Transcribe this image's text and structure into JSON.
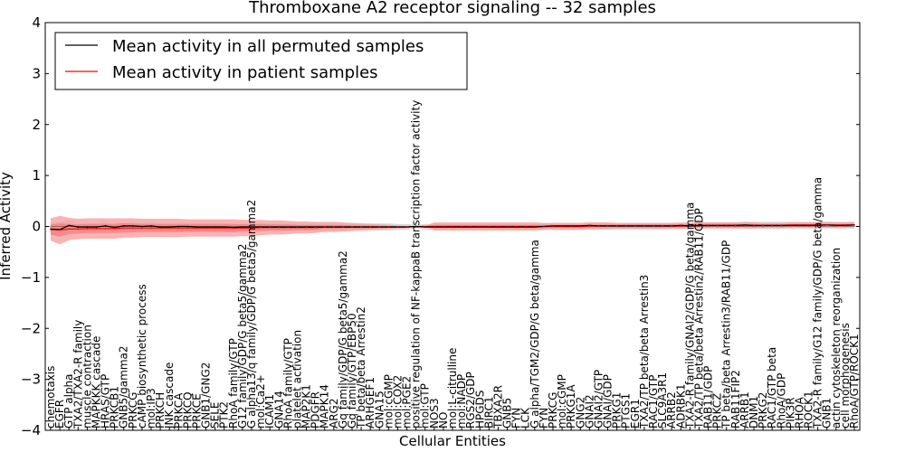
{
  "chart_data": {
    "type": "line",
    "title": "Thromboxane A2 receptor signaling -- 32 samples",
    "xlabel": "Cellular Entities",
    "ylabel": "Inferred Activity",
    "ylim": [
      -4,
      4
    ],
    "yticks": [
      "−4",
      "−3",
      "−2",
      "−1",
      "0",
      "1",
      "2",
      "3",
      "4"
    ],
    "legend": {
      "position": "top-left",
      "entries": [
        {
          "label": "Mean activity in all permuted samples",
          "color": "#000000"
        },
        {
          "label": "Mean activity in patient samples",
          "color": "#ff0000"
        }
      ]
    },
    "band_colors": {
      "permuted": "#cccccc",
      "patient_outer": "#f8a0a0",
      "patient_inner": "#f07070"
    },
    "categories": [
      "chemotaxis",
      "EGFR",
      "GTP alpha",
      "TXA2/TXA2-R family",
      "muscle contraction",
      "MAPKKK cascade",
      "HRAS/GTP",
      "PRKCB1",
      "GNB5/gamma2",
      "PRKCG",
      "cAMP biosynthetic process",
      "mol:IP3",
      "PRKCH",
      "JNK cascade",
      "PRKCA",
      "PRKCQ",
      "PRKCE",
      "GNB1/GNG2",
      "SELE",
      "PTK2",
      "RhoA family/GTP",
      "G12 family/GDP/G beta5/gamma2",
      "G alpha13/q family/GDP/G beta5/gamma2",
      "mol:Ca2+",
      "ICAM1",
      "GNA14",
      "RhoA family/GTP",
      "platelet activation",
      "MAP2K1",
      "PDGFR",
      "MAPK14",
      "ARG2",
      "Gq family/GDP/G beta5/gamma2",
      "Gq family/GTP/EBP50",
      "TP beta/beta Arrestin2",
      "ARHGEF1",
      "GNA15",
      "mol:cGMP",
      "mol:COX2",
      "mol:PGE2",
      "positive regulation of NF-kappaB transcription factor activity",
      "mol:GTP",
      "NOS3",
      "NO",
      "mol:L-citrulline",
      "mol:NADP",
      "RGS2/GDP",
      "HPGDS",
      "BIRC1",
      "TBXA2R",
      "GNB5",
      "FYN",
      "LCK",
      "G alpha/TGM2/GDP/G beta/gamma",
      "FYN",
      "PRKCG",
      "mol:cGMP",
      "PRKG1A",
      "GNG2",
      "GNAI2",
      "GNAI2/GTP",
      "GNAI/GDP",
      "PRKG1",
      "PTGS1",
      "EGR1",
      "TXA2/TP beta/beta Arrestin3",
      "RAC1/GTP",
      "SLC9A3R1",
      "ARRB2",
      "ADRBK1",
      "TXA2-R family/GNAI2/GDP/G beta/gamma",
      "TXA2/TP beta/beta Arrestin2/RAB11/GDP",
      "RAB11/GDP",
      "PRKCZ",
      "TP beta/beta Arrestin3/RAB11/GDP",
      "RAB11FIP2",
      "ARRB1",
      "DNM1",
      "PRKG2",
      "RAC1/GTP beta",
      "RhoA/GDP",
      "PIK3R",
      "RHOA",
      "ROCK1",
      "TXA2-R family/G12 family/GDP/G beta/gamma",
      "GNB1",
      "actin cytoskeleton reorganization",
      "cell morphogenesis",
      "RhoA/GTP/ROCK1"
    ],
    "series": [
      {
        "name": "Mean activity in all permuted samples",
        "values": [
          -0.05,
          -0.06,
          0.02,
          -0.01,
          -0.01,
          -0.01,
          0.01,
          -0.02,
          0.01,
          0.01,
          0.0,
          0.01,
          -0.01,
          -0.01,
          0.0,
          0.0,
          -0.01,
          -0.01,
          -0.01,
          -0.01,
          -0.02,
          -0.01,
          -0.01,
          -0.01,
          -0.01,
          -0.01,
          -0.01,
          -0.01,
          -0.01,
          -0.01,
          -0.01,
          -0.01,
          -0.01,
          -0.01,
          -0.01,
          -0.01,
          -0.01,
          -0.01,
          -0.01,
          -0.01,
          0.0,
          -0.01,
          -0.01,
          -0.01,
          -0.01,
          -0.01,
          -0.01,
          -0.01,
          -0.01,
          -0.01,
          -0.01,
          -0.01,
          -0.01,
          -0.01,
          0.0,
          0.01,
          0.01,
          0.01,
          0.01,
          0.02,
          0.01,
          0.01,
          0.01,
          0.01,
          0.01,
          0.01,
          0.01,
          0.01,
          0.01,
          0.02,
          0.01,
          0.02,
          0.02,
          0.02,
          0.02,
          0.02,
          0.03,
          0.02,
          0.02,
          0.02,
          0.02,
          0.02,
          0.02,
          0.02,
          0.02,
          0.03,
          0.02,
          0.02,
          0.03
        ]
      },
      {
        "name": "Mean activity in patient samples",
        "values": [
          -0.06,
          -0.07,
          -0.05,
          -0.05,
          -0.04,
          -0.04,
          -0.04,
          -0.04,
          -0.03,
          -0.03,
          -0.03,
          -0.03,
          -0.03,
          -0.03,
          -0.03,
          -0.03,
          -0.03,
          -0.03,
          -0.03,
          -0.03,
          -0.03,
          -0.03,
          -0.03,
          -0.02,
          -0.02,
          -0.02,
          -0.02,
          -0.02,
          -0.02,
          -0.02,
          -0.01,
          -0.01,
          -0.01,
          -0.01,
          -0.01,
          -0.01,
          -0.01,
          -0.01,
          -0.01,
          -0.01,
          0.0,
          0.0,
          0.0,
          0.0,
          0.0,
          0.0,
          0.0,
          0.0,
          0.0,
          0.0,
          0.0,
          0.0,
          0.0,
          0.0,
          0.0,
          0.0,
          0.0,
          0.0,
          0.0,
          0.01,
          0.01,
          0.01,
          0.01,
          0.01,
          0.01,
          0.01,
          0.01,
          0.01,
          0.01,
          0.01,
          0.02,
          0.02,
          0.02,
          0.02,
          0.02,
          0.02,
          0.02,
          0.02,
          0.02,
          0.02,
          0.02,
          0.03,
          0.03,
          0.03,
          0.03,
          0.03,
          0.03,
          0.03,
          0.03
        ]
      }
    ],
    "bands": {
      "permuted_spread": [
        0.12,
        0.15,
        0.1,
        0.08,
        0.08,
        0.08,
        0.08,
        0.08,
        0.07,
        0.07,
        0.07,
        0.07,
        0.07,
        0.07,
        0.07,
        0.07,
        0.07,
        0.07,
        0.07,
        0.07,
        0.07,
        0.07,
        0.07,
        0.07,
        0.07,
        0.07,
        0.07,
        0.07,
        0.07,
        0.07,
        0.07,
        0.07,
        0.07,
        0.07,
        0.07,
        0.07,
        0.07,
        0.07,
        0.06,
        0.06,
        0.03,
        0.06,
        0.06,
        0.06,
        0.06,
        0.06,
        0.06,
        0.06,
        0.06,
        0.06,
        0.06,
        0.06,
        0.06,
        0.06,
        0.06,
        0.06,
        0.06,
        0.06,
        0.06,
        0.06,
        0.06,
        0.06,
        0.06,
        0.06,
        0.06,
        0.06,
        0.06,
        0.06,
        0.06,
        0.06,
        0.06,
        0.06,
        0.06,
        0.06,
        0.06,
        0.06,
        0.07,
        0.07,
        0.07,
        0.07,
        0.07,
        0.07,
        0.07,
        0.07,
        0.07,
        0.07,
        0.07,
        0.07,
        0.07
      ],
      "patient_outer_spread": [
        0.22,
        0.28,
        0.22,
        0.2,
        0.2,
        0.2,
        0.2,
        0.2,
        0.19,
        0.19,
        0.18,
        0.18,
        0.18,
        0.18,
        0.18,
        0.17,
        0.17,
        0.17,
        0.17,
        0.17,
        0.17,
        0.16,
        0.16,
        0.15,
        0.14,
        0.14,
        0.13,
        0.12,
        0.12,
        0.11,
        0.1,
        0.1,
        0.09,
        0.08,
        0.07,
        0.06,
        0.05,
        0.04,
        0.03,
        0.02,
        0.0,
        0.01,
        0.08,
        0.08,
        0.08,
        0.08,
        0.08,
        0.08,
        0.08,
        0.08,
        0.08,
        0.08,
        0.08,
        0.08,
        0.07,
        0.07,
        0.07,
        0.07,
        0.07,
        0.07,
        0.07,
        0.07,
        0.06,
        0.06,
        0.06,
        0.06,
        0.06,
        0.06,
        0.06,
        0.06,
        0.06,
        0.06,
        0.06,
        0.06,
        0.06,
        0.06,
        0.06,
        0.06,
        0.05,
        0.05,
        0.05,
        0.05,
        0.05,
        0.05,
        0.05,
        0.05,
        0.05,
        0.05,
        0.05
      ],
      "patient_inner_spread": [
        0.1,
        0.13,
        0.1,
        0.09,
        0.09,
        0.09,
        0.09,
        0.09,
        0.09,
        0.09,
        0.08,
        0.08,
        0.08,
        0.08,
        0.08,
        0.08,
        0.08,
        0.08,
        0.08,
        0.08,
        0.08,
        0.07,
        0.07,
        0.07,
        0.06,
        0.06,
        0.06,
        0.05,
        0.05,
        0.05,
        0.04,
        0.04,
        0.04,
        0.03,
        0.03,
        0.03,
        0.02,
        0.02,
        0.01,
        0.01,
        0.0,
        0.0,
        0.03,
        0.03,
        0.03,
        0.03,
        0.03,
        0.03,
        0.03,
        0.03,
        0.03,
        0.03,
        0.03,
        0.03,
        0.03,
        0.03,
        0.03,
        0.03,
        0.03,
        0.03,
        0.03,
        0.03,
        0.03,
        0.03,
        0.03,
        0.03,
        0.03,
        0.03,
        0.03,
        0.03,
        0.03,
        0.03,
        0.03,
        0.03,
        0.03,
        0.03,
        0.03,
        0.03,
        0.02,
        0.02,
        0.02,
        0.02,
        0.02,
        0.02,
        0.02,
        0.02,
        0.02,
        0.02,
        0.02
      ]
    }
  }
}
